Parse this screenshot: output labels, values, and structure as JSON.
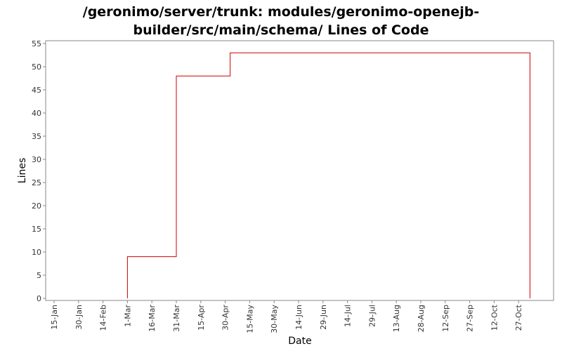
{
  "chart_data": {
    "type": "line",
    "step": true,
    "title_lines": [
      "/geronimo/server/trunk: modules/geronimo-openejb-",
      "builder/src/main/schema/ Lines of Code"
    ],
    "xlabel": "Date",
    "ylabel": "Lines",
    "ylim": [
      0,
      55
    ],
    "yticks": [
      0,
      5,
      10,
      15,
      20,
      25,
      30,
      35,
      40,
      45,
      50,
      55
    ],
    "xticks": [
      "15-Jan",
      "30-Jan",
      "14-Feb",
      "1-Mar",
      "16-Mar",
      "31-Mar",
      "15-Apr",
      "30-Apr",
      "15-May",
      "30-May",
      "14-Jun",
      "29-Jun",
      "14-Jul",
      "29-Jul",
      "13-Aug",
      "28-Aug",
      "12-Sep",
      "27-Sep",
      "12-Oct",
      "27-Oct"
    ],
    "series": [
      {
        "color": "#cc0000",
        "points": [
          {
            "x": "1-Mar",
            "y": 0
          },
          {
            "x": "1-Mar",
            "y": 9
          },
          {
            "x": "31-Mar",
            "y": 9
          },
          {
            "x": "31-Mar",
            "y": 48
          },
          {
            "x": "3-May",
            "y": 48
          },
          {
            "x": "3-May",
            "y": 53
          },
          {
            "x": "3-Nov",
            "y": 53
          },
          {
            "x": "3-Nov",
            "y": 0
          }
        ]
      }
    ]
  }
}
